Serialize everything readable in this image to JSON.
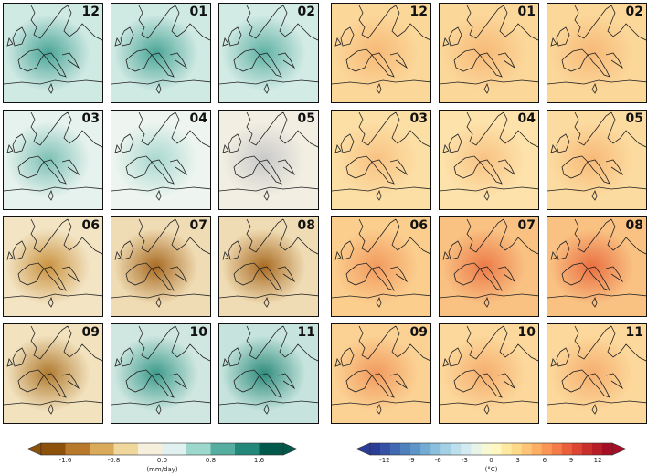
{
  "precip_panels": [
    {
      "month": "12",
      "base": "#cfe9e3",
      "accent": "#4aa597"
    },
    {
      "month": "01",
      "base": "#cfe9e3",
      "accent": "#4aa597"
    },
    {
      "month": "02",
      "base": "#d3ebe5",
      "accent": "#5fb1a4"
    },
    {
      "month": "03",
      "base": "#e6f2ee",
      "accent": "#7cc0b4"
    },
    {
      "month": "04",
      "base": "#eef5f0",
      "accent": "#a8d8cf"
    },
    {
      "month": "05",
      "base": "#f2efe2",
      "accent": "#c9c9c9"
    },
    {
      "month": "06",
      "base": "#f3e4c4",
      "accent": "#c9923f"
    },
    {
      "month": "07",
      "base": "#f0dcb4",
      "accent": "#a86a22"
    },
    {
      "month": "08",
      "base": "#f0dcb4",
      "accent": "#a86a22"
    },
    {
      "month": "09",
      "base": "#f2e2be",
      "accent": "#b07a30"
    },
    {
      "month": "10",
      "base": "#cfe7e0",
      "accent": "#3d9b8c"
    },
    {
      "month": "11",
      "base": "#c6e4dd",
      "accent": "#2f8c7d"
    }
  ],
  "temp_panels": [
    {
      "month": "12",
      "base": "#fbd79a",
      "accent": "#f7b977"
    },
    {
      "month": "01",
      "base": "#fbd79a",
      "accent": "#f7b977"
    },
    {
      "month": "02",
      "base": "#fbd79a",
      "accent": "#f7b977"
    },
    {
      "month": "03",
      "base": "#fcdfa5",
      "accent": "#f8c283"
    },
    {
      "month": "04",
      "base": "#fde3ab",
      "accent": "#f8c283"
    },
    {
      "month": "05",
      "base": "#fcdba0",
      "accent": "#f7b977"
    },
    {
      "month": "06",
      "base": "#fbce8e",
      "accent": "#f29a5e"
    },
    {
      "month": "07",
      "base": "#f9c283",
      "accent": "#ec7a48"
    },
    {
      "month": "08",
      "base": "#f9c283",
      "accent": "#ea6f42"
    },
    {
      "month": "09",
      "base": "#fbd294",
      "accent": "#f29a5e"
    },
    {
      "month": "10",
      "base": "#fcd89c",
      "accent": "#f5ae6e"
    },
    {
      "month": "11",
      "base": "#fcd89c",
      "accent": "#f5ae6e"
    }
  ],
  "precip_colorbar": {
    "unit": "(mm/day)",
    "ticks": [
      "-1.6",
      "-0.8",
      "0.0",
      "0.8",
      "1.6"
    ],
    "colors": [
      "#8c510a",
      "#b8792a",
      "#d9aa5a",
      "#f0d79c",
      "#f6efdc",
      "#e0f1ef",
      "#9cd8cc",
      "#55ae9f",
      "#23877a",
      "#01594c"
    ]
  },
  "temp_colorbar": {
    "unit": "(°C)",
    "ticks": [
      "-12",
      "-9",
      "-6",
      "-3",
      "0",
      "3",
      "6",
      "9",
      "12"
    ],
    "colors": [
      "#2c3d97",
      "#3552a4",
      "#4069b1",
      "#4d80bd",
      "#5e95c8",
      "#74abd3",
      "#8bbfdd",
      "#a3d0e5",
      "#bddfec",
      "#d4eaf1",
      "#e8f4ea",
      "#f6f9d2",
      "#fef7c0",
      "#fee9a2",
      "#fdd98a",
      "#fdc577",
      "#fcae63",
      "#f99655",
      "#f47c48",
      "#ea603b",
      "#dd4632",
      "#cb2f2b",
      "#b81e27",
      "#a50f26"
    ]
  }
}
